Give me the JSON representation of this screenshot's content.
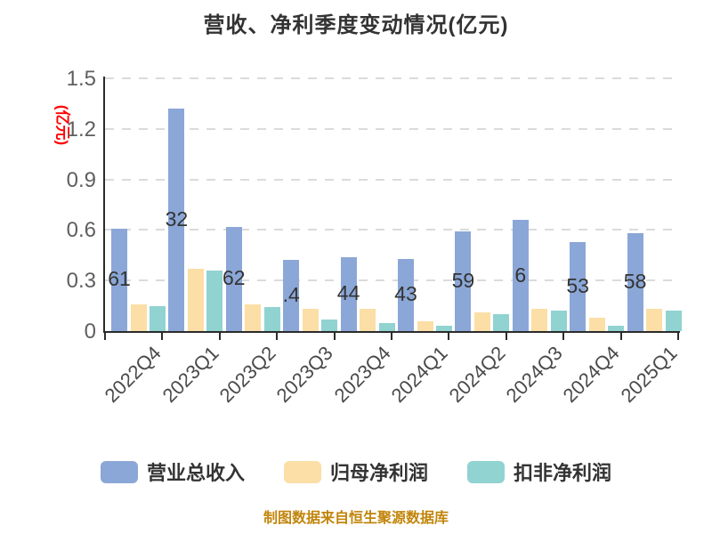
{
  "title": "营收、净利季度变动情况(亿元)",
  "y_axis": {
    "name": "(亿元)",
    "name_color": "#FF0000",
    "ticks": [
      "0",
      "0.3",
      "0.6",
      "0.9",
      "1.2",
      "1.5"
    ]
  },
  "footer": {
    "text": "制图数据来自恒生聚源数据库",
    "color": "#C2850B"
  },
  "legend": {
    "items": [
      {
        "label": "营业总收入",
        "color": "#8BA7D7"
      },
      {
        "label": "归母净利润",
        "color": "#FBDFA6"
      },
      {
        "label": "扣非净利润",
        "color": "#90D3D1"
      }
    ]
  },
  "chart_data": {
    "type": "bar",
    "title": "营收、净利季度变动情况(亿元)",
    "ylabel": "(亿元)",
    "xlabel": "",
    "ylim": [
      0,
      1.5
    ],
    "ytick_step": 0.3,
    "grid": "horizontal dashed",
    "legend_position": "bottom",
    "categories": [
      "2022Q4",
      "2023Q1",
      "2023Q2",
      "2023Q3",
      "2023Q4",
      "2024Q1",
      "2024Q2",
      "2024Q3",
      "2024Q4",
      "2025Q1"
    ],
    "series": [
      {
        "name": "营业总收入",
        "color": "#8BA7D7",
        "values": [
          0.61,
          1.32,
          0.62,
          0.42,
          0.44,
          0.43,
          0.59,
          0.66,
          0.53,
          0.58
        ],
        "labels_visible": [
          "61",
          "32",
          "62",
          ".4",
          "44",
          "43",
          "59",
          "6",
          "53",
          "58"
        ]
      },
      {
        "name": "归母净利润",
        "color": "#FBDFA6",
        "values": [
          0.16,
          0.37,
          0.16,
          0.13,
          0.13,
          0.06,
          0.11,
          0.13,
          0.08,
          0.13
        ]
      },
      {
        "name": "扣非净利润",
        "color": "#90D3D1",
        "values": [
          0.15,
          0.36,
          0.14,
          0.07,
          0.05,
          0.03,
          0.1,
          0.12,
          0.03,
          0.12
        ]
      }
    ]
  }
}
